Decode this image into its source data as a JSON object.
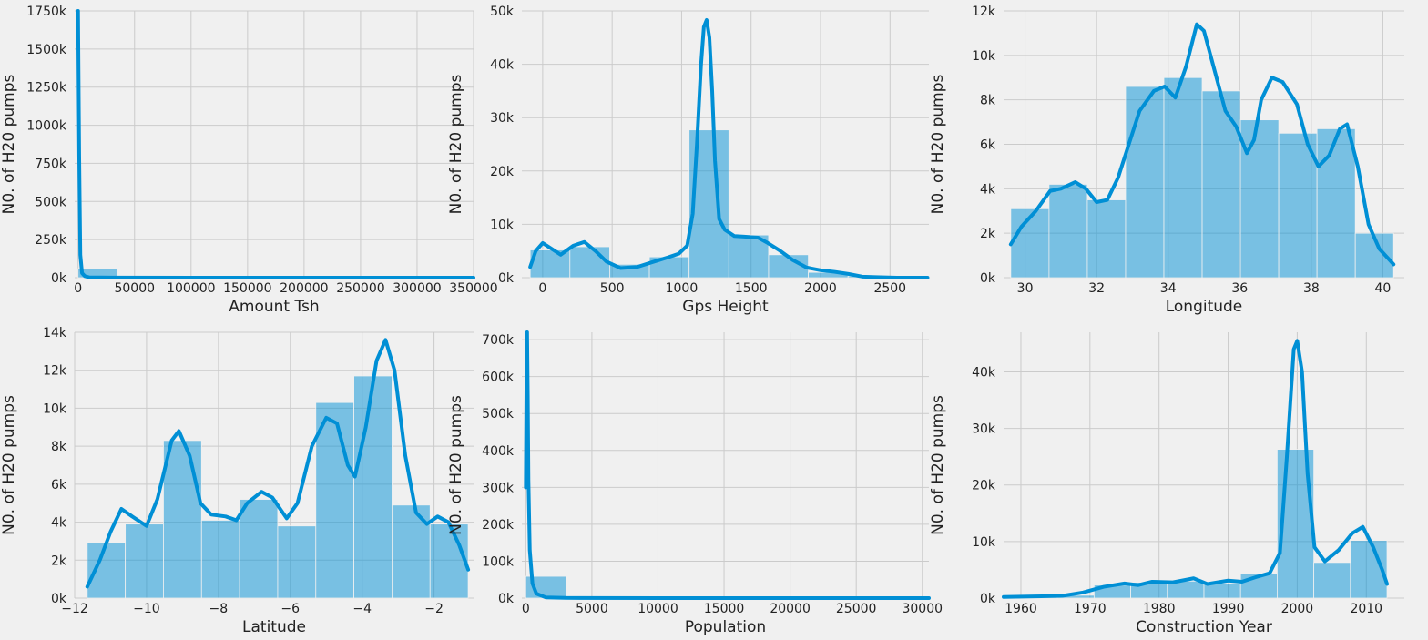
{
  "figure": {
    "background": "#f0f0f0",
    "bar_color": "#008fd5",
    "bar_opacity": 0.5,
    "line_color": "#008fd5",
    "grid_color": "#cbcbcb"
  },
  "chart_data": [
    {
      "type": "bar",
      "subtype": "histogram_with_kde",
      "xlabel": "Amount Tsh",
      "ylabel": "N0. of H20 pumps",
      "xlim": [
        -3000,
        350000
      ],
      "ylim": [
        0,
        1750000
      ],
      "xticks": [
        0,
        50000,
        100000,
        150000,
        200000,
        250000,
        300000,
        350000
      ],
      "xtick_labels": [
        "0",
        "50000",
        "100000",
        "150000",
        "200000",
        "250000",
        "300000",
        "350000"
      ],
      "yticks": [
        0,
        250000,
        500000,
        750000,
        1000000,
        1250000,
        1500000,
        1750000
      ],
      "ytick_labels": [
        "0k",
        "250k",
        "500k",
        "750k",
        "1000k",
        "1250k",
        "1500k",
        "1750k"
      ],
      "bins": [
        [
          0,
          35000,
          59300
        ],
        [
          35000,
          70000,
          100
        ],
        [
          70000,
          105000,
          60
        ],
        [
          105000,
          140000,
          30
        ],
        [
          140000,
          175000,
          20
        ],
        [
          175000,
          210000,
          20
        ],
        [
          210000,
          245000,
          10
        ],
        [
          245000,
          280000,
          5
        ],
        [
          280000,
          315000,
          5
        ],
        [
          315000,
          350000,
          5
        ]
      ],
      "kde": [
        [
          0,
          1750000
        ],
        [
          1000,
          800000
        ],
        [
          2000,
          150000
        ],
        [
          3500,
          30000
        ],
        [
          6000,
          10000
        ],
        [
          10000,
          2000
        ],
        [
          30000,
          500
        ],
        [
          100000,
          100
        ],
        [
          350000,
          0
        ]
      ],
      "grid": true
    },
    {
      "type": "bar",
      "subtype": "histogram_with_kde",
      "xlabel": "Gps Height",
      "ylabel": "N0. of H20 pumps",
      "xlim": [
        -150,
        2780
      ],
      "ylim": [
        0,
        50000
      ],
      "xticks": [
        0,
        500,
        1000,
        1500,
        2000,
        2500
      ],
      "xtick_labels": [
        "0",
        "500",
        "1000",
        "1500",
        "2000",
        "2500"
      ],
      "yticks": [
        0,
        10000,
        20000,
        30000,
        40000,
        50000
      ],
      "ytick_labels": [
        "0k",
        "10k",
        "20k",
        "30k",
        "40k",
        "50k"
      ],
      "bins": [
        [
          -90,
          196,
          5200
        ],
        [
          196,
          482,
          5800
        ],
        [
          482,
          768,
          2500
        ],
        [
          768,
          1054,
          3900
        ],
        [
          1054,
          1340,
          27700
        ],
        [
          1340,
          1626,
          8000
        ],
        [
          1626,
          1912,
          4300
        ],
        [
          1912,
          2198,
          1000
        ],
        [
          2198,
          2484,
          300
        ],
        [
          2484,
          2770,
          100
        ]
      ],
      "kde": [
        [
          -90,
          2000
        ],
        [
          -50,
          5000
        ],
        [
          0,
          6500
        ],
        [
          60,
          5500
        ],
        [
          130,
          4300
        ],
        [
          220,
          6000
        ],
        [
          300,
          6700
        ],
        [
          380,
          5000
        ],
        [
          460,
          3000
        ],
        [
          560,
          1800
        ],
        [
          680,
          2000
        ],
        [
          800,
          3000
        ],
        [
          900,
          3800
        ],
        [
          980,
          4500
        ],
        [
          1040,
          6000
        ],
        [
          1080,
          12000
        ],
        [
          1110,
          25000
        ],
        [
          1140,
          40000
        ],
        [
          1160,
          47000
        ],
        [
          1180,
          48300
        ],
        [
          1200,
          45000
        ],
        [
          1220,
          35000
        ],
        [
          1240,
          22000
        ],
        [
          1270,
          11000
        ],
        [
          1310,
          9000
        ],
        [
          1380,
          7800
        ],
        [
          1450,
          7700
        ],
        [
          1550,
          7500
        ],
        [
          1620,
          6500
        ],
        [
          1700,
          5200
        ],
        [
          1800,
          3300
        ],
        [
          1900,
          1900
        ],
        [
          2000,
          1400
        ],
        [
          2100,
          1100
        ],
        [
          2200,
          700
        ],
        [
          2300,
          200
        ],
        [
          2400,
          100
        ],
        [
          2550,
          0
        ],
        [
          2770,
          0
        ]
      ],
      "grid": true
    },
    {
      "type": "bar",
      "subtype": "histogram_with_kde",
      "xlabel": "Longitude",
      "ylabel": "N0. of H20 pumps",
      "xlim": [
        29.4,
        40.6
      ],
      "ylim": [
        0,
        12000
      ],
      "xticks": [
        30,
        32,
        34,
        36,
        38,
        40
      ],
      "xtick_labels": [
        "30",
        "32",
        "34",
        "36",
        "38",
        "40"
      ],
      "yticks": [
        0,
        2000,
        4000,
        6000,
        8000,
        10000,
        12000
      ],
      "ytick_labels": [
        "0k",
        "2k",
        "4k",
        "6k",
        "8k",
        "10k",
        "12k"
      ],
      "bins": [
        [
          29.6,
          30.67,
          3100
        ],
        [
          30.67,
          31.74,
          4200
        ],
        [
          31.74,
          32.81,
          3500
        ],
        [
          32.81,
          33.88,
          8600
        ],
        [
          33.88,
          34.95,
          9000
        ],
        [
          34.95,
          36.02,
          8400
        ],
        [
          36.02,
          37.09,
          7100
        ],
        [
          37.09,
          38.16,
          6500
        ],
        [
          38.16,
          39.23,
          6700
        ],
        [
          39.23,
          40.3,
          2000
        ]
      ],
      "kde": [
        [
          29.6,
          1500
        ],
        [
          29.9,
          2300
        ],
        [
          30.3,
          3000
        ],
        [
          30.7,
          3900
        ],
        [
          31.0,
          4000
        ],
        [
          31.4,
          4300
        ],
        [
          31.7,
          4000
        ],
        [
          32.0,
          3400
        ],
        [
          32.3,
          3500
        ],
        [
          32.6,
          4500
        ],
        [
          32.9,
          6000
        ],
        [
          33.2,
          7500
        ],
        [
          33.6,
          8400
        ],
        [
          33.9,
          8600
        ],
        [
          34.2,
          8100
        ],
        [
          34.5,
          9500
        ],
        [
          34.8,
          11400
        ],
        [
          35.0,
          11100
        ],
        [
          35.3,
          9300
        ],
        [
          35.6,
          7500
        ],
        [
          35.9,
          6800
        ],
        [
          36.2,
          5600
        ],
        [
          36.4,
          6200
        ],
        [
          36.6,
          8000
        ],
        [
          36.9,
          9000
        ],
        [
          37.2,
          8800
        ],
        [
          37.6,
          7800
        ],
        [
          37.9,
          6000
        ],
        [
          38.2,
          5000
        ],
        [
          38.5,
          5500
        ],
        [
          38.8,
          6700
        ],
        [
          39.0,
          6900
        ],
        [
          39.3,
          5000
        ],
        [
          39.6,
          2400
        ],
        [
          39.9,
          1300
        ],
        [
          40.3,
          600
        ]
      ],
      "grid": true
    },
    {
      "type": "bar",
      "subtype": "histogram_with_kde",
      "xlabel": "Latitude",
      "ylabel": "N0. of H20 pumps",
      "xlim": [
        -12.0,
        -0.9
      ],
      "ylim": [
        0,
        14000
      ],
      "xticks": [
        -12,
        -10,
        -8,
        -6,
        -4,
        -2
      ],
      "xtick_labels": [
        "−12",
        "−10",
        "−8",
        "−6",
        "−4",
        "−2"
      ],
      "yticks": [
        0,
        2000,
        4000,
        6000,
        8000,
        10000,
        12000,
        14000
      ],
      "ytick_labels": [
        "0k",
        "2k",
        "4k",
        "6k",
        "8k",
        "10k",
        "12k",
        "14k"
      ],
      "bins": [
        [
          -11.65,
          -10.59,
          2900
        ],
        [
          -10.59,
          -9.53,
          3900
        ],
        [
          -9.53,
          -8.47,
          8300
        ],
        [
          -8.47,
          -7.41,
          4100
        ],
        [
          -7.41,
          -6.35,
          5200
        ],
        [
          -6.35,
          -5.29,
          3800
        ],
        [
          -5.29,
          -4.23,
          10300
        ],
        [
          -4.23,
          -3.17,
          11700
        ],
        [
          -3.17,
          -2.11,
          4900
        ],
        [
          -2.11,
          -1.05,
          3900
        ]
      ],
      "kde": [
        [
          -11.65,
          600
        ],
        [
          -11.3,
          2000
        ],
        [
          -11.0,
          3500
        ],
        [
          -10.7,
          4700
        ],
        [
          -10.4,
          4300
        ],
        [
          -10.0,
          3800
        ],
        [
          -9.7,
          5200
        ],
        [
          -9.3,
          8300
        ],
        [
          -9.1,
          8800
        ],
        [
          -8.8,
          7500
        ],
        [
          -8.5,
          5000
        ],
        [
          -8.2,
          4400
        ],
        [
          -7.8,
          4300
        ],
        [
          -7.5,
          4100
        ],
        [
          -7.2,
          5000
        ],
        [
          -6.8,
          5600
        ],
        [
          -6.5,
          5300
        ],
        [
          -6.1,
          4200
        ],
        [
          -5.8,
          5000
        ],
        [
          -5.4,
          8000
        ],
        [
          -5.0,
          9500
        ],
        [
          -4.7,
          9200
        ],
        [
          -4.4,
          7000
        ],
        [
          -4.2,
          6400
        ],
        [
          -3.9,
          9000
        ],
        [
          -3.6,
          12500
        ],
        [
          -3.35,
          13600
        ],
        [
          -3.1,
          12000
        ],
        [
          -2.8,
          7500
        ],
        [
          -2.5,
          4500
        ],
        [
          -2.2,
          3900
        ],
        [
          -1.9,
          4300
        ],
        [
          -1.6,
          4000
        ],
        [
          -1.3,
          2800
        ],
        [
          -1.05,
          1500
        ]
      ],
      "grid": true
    },
    {
      "type": "bar",
      "subtype": "histogram_with_kde",
      "xlabel": "Population",
      "ylabel": "N0. of H20 pumps",
      "xlim": [
        -300,
        30500
      ],
      "ylim": [
        0,
        720000
      ],
      "xticks": [
        0,
        5000,
        10000,
        15000,
        20000,
        25000,
        30000
      ],
      "xtick_labels": [
        "0",
        "5000",
        "10000",
        "15000",
        "20000",
        "25000",
        "30000"
      ],
      "yticks": [
        0,
        100000,
        200000,
        300000,
        400000,
        500000,
        600000,
        700000
      ],
      "ytick_labels": [
        "0k",
        "100k",
        "200k",
        "300k",
        "400k",
        "500k",
        "600k",
        "700k"
      ],
      "bins": [
        [
          0,
          3050,
          59000
        ],
        [
          3050,
          6100,
          400
        ],
        [
          6100,
          9150,
          100
        ],
        [
          9150,
          12200,
          50
        ],
        [
          12200,
          15250,
          30
        ],
        [
          15250,
          18300,
          20
        ],
        [
          18300,
          21350,
          10
        ],
        [
          21350,
          24400,
          5
        ],
        [
          24400,
          27450,
          5
        ],
        [
          27450,
          30500,
          5
        ]
      ],
      "kde": [
        [
          0,
          300000
        ],
        [
          50,
          600000
        ],
        [
          100,
          720000
        ],
        [
          150,
          550000
        ],
        [
          200,
          320000
        ],
        [
          300,
          130000
        ],
        [
          500,
          40000
        ],
        [
          800,
          12000
        ],
        [
          1500,
          2000
        ],
        [
          3000,
          500
        ],
        [
          10000,
          100
        ],
        [
          30500,
          0
        ]
      ],
      "grid": true
    },
    {
      "type": "bar",
      "subtype": "histogram_with_kde",
      "xlabel": "Construction Year",
      "ylabel": "N0. of H20 pumps",
      "xlim": [
        1957.5,
        2015.5
      ],
      "ylim": [
        0,
        47000
      ],
      "xticks": [
        1960,
        1970,
        1980,
        1990,
        2000,
        2010
      ],
      "xtick_labels": [
        "1960",
        "1970",
        "1980",
        "1990",
        "2000",
        "2010"
      ],
      "yticks": [
        0,
        10000,
        20000,
        30000,
        40000
      ],
      "ytick_labels": [
        "0k",
        "10k",
        "20k",
        "30k",
        "40k"
      ],
      "bins": [
        [
          1960,
          1965.3,
          200
        ],
        [
          1965.3,
          1970.6,
          500
        ],
        [
          1970.6,
          1975.9,
          2300
        ],
        [
          1975.9,
          1981.2,
          2800
        ],
        [
          1981.2,
          1986.5,
          3000
        ],
        [
          1986.5,
          1991.8,
          2600
        ],
        [
          1991.8,
          1997.1,
          4300
        ],
        [
          1997.1,
          2002.4,
          26300
        ],
        [
          2002.4,
          2007.7,
          6300
        ],
        [
          2007.7,
          2013,
          10200
        ]
      ],
      "kde": [
        [
          1957.5,
          200
        ],
        [
          1962,
          300
        ],
        [
          1966,
          400
        ],
        [
          1969,
          1000
        ],
        [
          1972,
          2000
        ],
        [
          1975,
          2600
        ],
        [
          1977,
          2300
        ],
        [
          1979,
          2900
        ],
        [
          1982,
          2800
        ],
        [
          1985,
          3500
        ],
        [
          1987,
          2500
        ],
        [
          1990,
          3100
        ],
        [
          1992,
          2900
        ],
        [
          1994,
          3700
        ],
        [
          1996,
          4400
        ],
        [
          1997.5,
          8000
        ],
        [
          1998.5,
          25000
        ],
        [
          1999.5,
          44000
        ],
        [
          2000,
          45500
        ],
        [
          2000.7,
          40000
        ],
        [
          2001.5,
          22000
        ],
        [
          2002.5,
          9000
        ],
        [
          2004,
          6500
        ],
        [
          2006,
          8500
        ],
        [
          2008,
          11500
        ],
        [
          2009.5,
          12600
        ],
        [
          2011,
          9000
        ],
        [
          2012.3,
          5000
        ],
        [
          2013,
          2500
        ]
      ],
      "grid": true
    }
  ]
}
